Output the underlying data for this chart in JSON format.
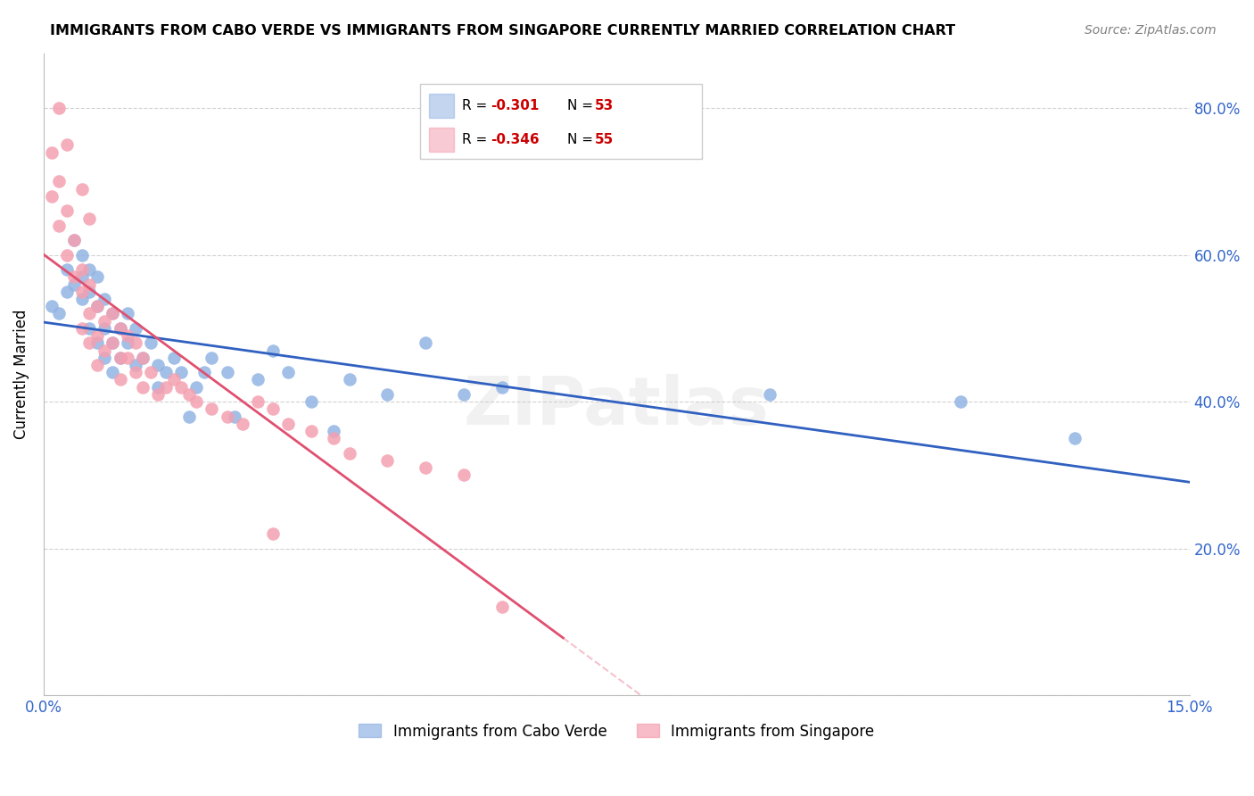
{
  "title": "IMMIGRANTS FROM CABO VERDE VS IMMIGRANTS FROM SINGAPORE CURRENTLY MARRIED CORRELATION CHART",
  "source": "Source: ZipAtlas.com",
  "ylabel": "Currently Married",
  "x_min": 0.0,
  "x_max": 0.15,
  "y_min": 0.0,
  "y_max": 0.875,
  "cabo_verde_R": "-0.301",
  "cabo_verde_N": "53",
  "singapore_R": "-0.346",
  "singapore_N": "55",
  "cabo_verde_color": "#92b4e3",
  "singapore_color": "#f4a0b0",
  "trend_cabo_color": "#3060c0",
  "trend_singapore_color": "#e05070",
  "watermark": "ZIPatlas",
  "cabo_verde_x": [
    0.001,
    0.002,
    0.003,
    0.003,
    0.004,
    0.004,
    0.005,
    0.005,
    0.005,
    0.006,
    0.006,
    0.006,
    0.007,
    0.007,
    0.007,
    0.008,
    0.008,
    0.008,
    0.009,
    0.009,
    0.009,
    0.01,
    0.01,
    0.011,
    0.011,
    0.012,
    0.012,
    0.013,
    0.014,
    0.015,
    0.015,
    0.016,
    0.017,
    0.018,
    0.019,
    0.02,
    0.021,
    0.022,
    0.024,
    0.025,
    0.028,
    0.03,
    0.032,
    0.035,
    0.038,
    0.04,
    0.045,
    0.05,
    0.055,
    0.06,
    0.095,
    0.12,
    0.135
  ],
  "cabo_verde_y": [
    0.53,
    0.52,
    0.58,
    0.55,
    0.62,
    0.56,
    0.6,
    0.57,
    0.54,
    0.58,
    0.55,
    0.5,
    0.57,
    0.53,
    0.48,
    0.54,
    0.5,
    0.46,
    0.52,
    0.48,
    0.44,
    0.5,
    0.46,
    0.52,
    0.48,
    0.5,
    0.45,
    0.46,
    0.48,
    0.45,
    0.42,
    0.44,
    0.46,
    0.44,
    0.38,
    0.42,
    0.44,
    0.46,
    0.44,
    0.38,
    0.43,
    0.47,
    0.44,
    0.4,
    0.36,
    0.43,
    0.41,
    0.48,
    0.41,
    0.42,
    0.41,
    0.4,
    0.35
  ],
  "singapore_x": [
    0.001,
    0.001,
    0.002,
    0.002,
    0.003,
    0.003,
    0.004,
    0.004,
    0.005,
    0.005,
    0.005,
    0.006,
    0.006,
    0.006,
    0.007,
    0.007,
    0.007,
    0.008,
    0.008,
    0.009,
    0.009,
    0.01,
    0.01,
    0.01,
    0.011,
    0.011,
    0.012,
    0.012,
    0.013,
    0.013,
    0.014,
    0.015,
    0.016,
    0.017,
    0.018,
    0.019,
    0.02,
    0.022,
    0.024,
    0.026,
    0.028,
    0.03,
    0.032,
    0.035,
    0.038,
    0.04,
    0.045,
    0.05,
    0.055,
    0.06,
    0.002,
    0.003,
    0.005,
    0.006,
    0.03
  ],
  "singapore_y": [
    0.74,
    0.68,
    0.7,
    0.64,
    0.66,
    0.6,
    0.62,
    0.57,
    0.58,
    0.55,
    0.5,
    0.56,
    0.52,
    0.48,
    0.53,
    0.49,
    0.45,
    0.51,
    0.47,
    0.52,
    0.48,
    0.5,
    0.46,
    0.43,
    0.49,
    0.46,
    0.48,
    0.44,
    0.46,
    0.42,
    0.44,
    0.41,
    0.42,
    0.43,
    0.42,
    0.41,
    0.4,
    0.39,
    0.38,
    0.37,
    0.4,
    0.39,
    0.37,
    0.36,
    0.35,
    0.33,
    0.32,
    0.31,
    0.3,
    0.12,
    0.8,
    0.75,
    0.69,
    0.65,
    0.22
  ]
}
